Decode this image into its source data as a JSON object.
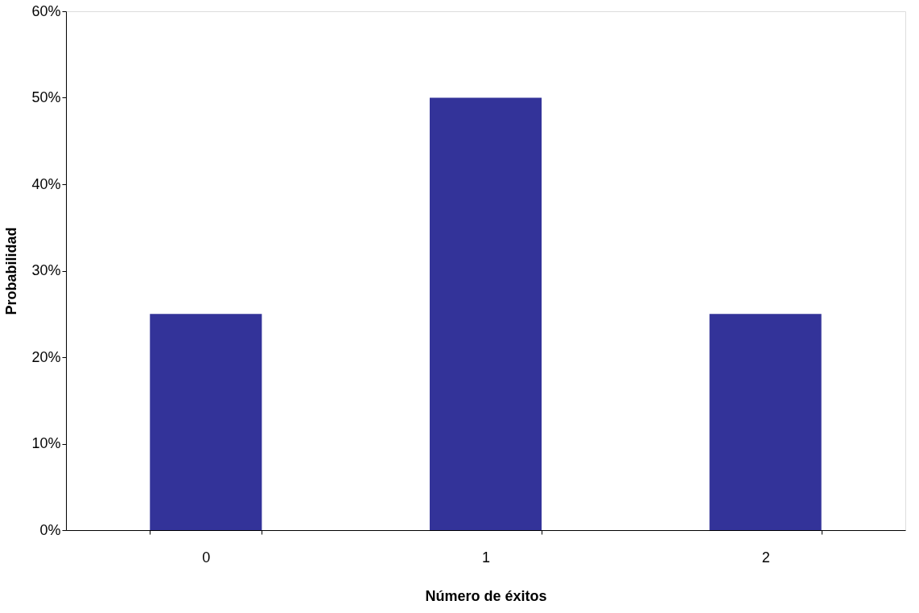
{
  "chart_data": {
    "type": "bar",
    "xlabel": "Número de éxitos",
    "ylabel": "Probabilidad",
    "categories": [
      "0",
      "1",
      "2"
    ],
    "values": [
      25,
      50,
      25
    ],
    "color": "#333399",
    "ylim": [
      0,
      60
    ],
    "yticks": [
      {
        "value": 0,
        "label": "0%"
      },
      {
        "value": 10,
        "label": "10%"
      },
      {
        "value": 20,
        "label": "20%"
      },
      {
        "value": 30,
        "label": "30%"
      },
      {
        "value": 40,
        "label": "40%"
      },
      {
        "value": 50,
        "label": "50%"
      },
      {
        "value": 60,
        "label": "60%"
      }
    ],
    "grid": false
  }
}
